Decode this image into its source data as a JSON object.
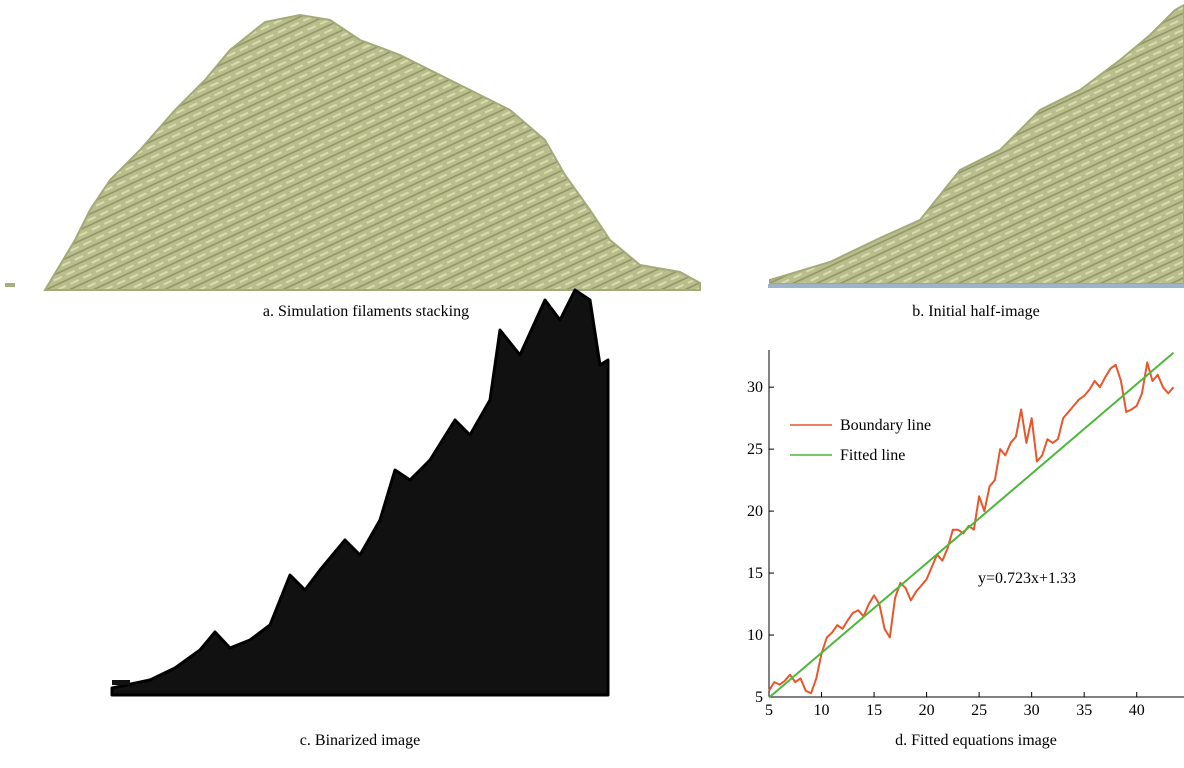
{
  "panels": [
    {
      "caption": "a. Simulation filaments stacking"
    },
    {
      "caption": "b. Initial half-image"
    },
    {
      "caption": "c. Binarized image"
    },
    {
      "caption": "d. Fitted equations image"
    }
  ],
  "chart_data": {
    "type": "line",
    "annotation": "y=0.723x+1.33",
    "xlim": [
      5,
      44.5
    ],
    "xticks": [
      5,
      10,
      15,
      20,
      25,
      30,
      35,
      40
    ],
    "ylim": [
      5,
      33
    ],
    "yticks": [
      5,
      10,
      15,
      20,
      25,
      30
    ],
    "series": [
      {
        "name": "Boundary line",
        "color": "#e8562a",
        "x": [
          5,
          5.5,
          6,
          6.5,
          7,
          7.5,
          8,
          8.5,
          9,
          9.5,
          10,
          10.5,
          11,
          11.5,
          12,
          12.5,
          13,
          13.5,
          14,
          14.5,
          15,
          15.5,
          16,
          16.5,
          17,
          17.5,
          18,
          18.5,
          19,
          19.5,
          20,
          20.5,
          21,
          21.5,
          22,
          22.5,
          23,
          23.5,
          24,
          24.5,
          25,
          25.5,
          26,
          26.5,
          27,
          27.5,
          28,
          28.5,
          29,
          29.5,
          30,
          30.5,
          31,
          31.5,
          32,
          32.5,
          33,
          33.5,
          34,
          34.5,
          35,
          35.5,
          36,
          36.5,
          37,
          37.5,
          38,
          38.5,
          39,
          39.5,
          40,
          40.5,
          41,
          41.5,
          42,
          42.5,
          43,
          43.5
        ],
        "values": [
          5.5,
          6.2,
          6.0,
          6.3,
          6.8,
          6.2,
          6.5,
          5.5,
          5.3,
          6.5,
          8.5,
          9.8,
          10.2,
          10.8,
          10.5,
          11.2,
          11.8,
          12.0,
          11.5,
          12.5,
          13.2,
          12.5,
          10.5,
          9.8,
          13.0,
          14.2,
          13.8,
          12.8,
          13.5,
          14.0,
          14.5,
          15.5,
          16.5,
          16.0,
          17.0,
          18.5,
          18.5,
          18.2,
          18.8,
          18.5,
          21.2,
          20.0,
          22.0,
          22.5,
          25.0,
          24.5,
          25.5,
          26.0,
          28.2,
          25.5,
          27.5,
          24.0,
          24.5,
          25.8,
          25.5,
          25.8,
          27.5,
          28.0,
          28.5,
          29.0,
          29.3,
          29.8,
          30.5,
          30.0,
          30.8,
          31.5,
          31.8,
          30.5,
          28.0,
          28.2,
          28.5,
          29.5,
          32.0,
          30.5,
          31.0,
          30.0,
          29.5,
          30.0
        ]
      },
      {
        "name": "Fitted line",
        "color": "#4cb83a",
        "x": [
          5,
          43.5
        ],
        "values": [
          4.95,
          32.78
        ]
      }
    ]
  }
}
